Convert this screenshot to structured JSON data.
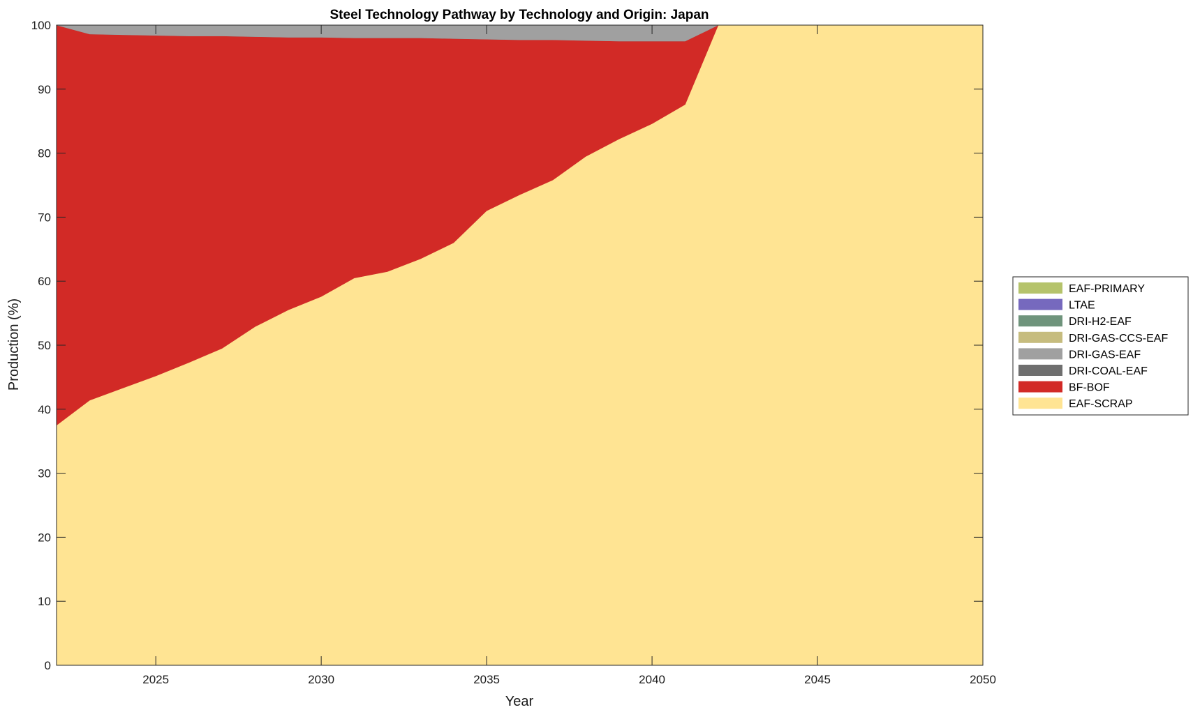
{
  "chart_data": {
    "type": "area",
    "stacked": true,
    "title": "Steel Technology Pathway by Technology and Origin: Japan",
    "xlabel": "Year",
    "ylabel": "Production (%)",
    "xlim": [
      2022,
      2050
    ],
    "ylim": [
      0,
      100
    ],
    "xticks": [
      2025,
      2030,
      2035,
      2040,
      2045,
      2050
    ],
    "yticks": [
      0,
      10,
      20,
      30,
      40,
      50,
      60,
      70,
      80,
      90,
      100
    ],
    "grid": false,
    "legend_position": "right",
    "x": [
      2022,
      2023,
      2024,
      2025,
      2026,
      2027,
      2028,
      2029,
      2030,
      2031,
      2032,
      2033,
      2034,
      2035,
      2036,
      2037,
      2038,
      2039,
      2040,
      2041,
      2042,
      2043,
      2044,
      2045,
      2046,
      2047,
      2048,
      2049,
      2050
    ],
    "series": [
      {
        "name": "EAF-SCRAP",
        "color": "#ffe493",
        "values": [
          37.5,
          41.4,
          43.3,
          45.2,
          47.3,
          49.5,
          52.9,
          55.5,
          57.6,
          60.5,
          61.5,
          63.5,
          66.0,
          71.0,
          73.5,
          75.8,
          79.5,
          82.2,
          84.6,
          87.6,
          100,
          100,
          100,
          100,
          100,
          100,
          100,
          100,
          100
        ]
      },
      {
        "name": "BF-BOF",
        "color": "#d22a26",
        "values": [
          62.5,
          57.2,
          55.2,
          53.2,
          51.0,
          48.8,
          45.3,
          42.6,
          40.5,
          37.5,
          36.5,
          34.5,
          31.9,
          26.8,
          24.2,
          21.9,
          18.1,
          15.3,
          12.9,
          9.9,
          0,
          0,
          0,
          0,
          0,
          0,
          0,
          0,
          0
        ]
      },
      {
        "name": "DRI-COAL-EAF",
        "color": "#6f6f6f",
        "values": [
          0,
          0,
          0,
          0,
          0,
          0,
          0,
          0,
          0,
          0,
          0,
          0,
          0,
          0,
          0,
          0,
          0,
          0,
          0,
          0,
          0,
          0,
          0,
          0,
          0,
          0,
          0,
          0,
          0
        ]
      },
      {
        "name": "DRI-GAS-EAF",
        "color": "#a0a0a0",
        "values": [
          0,
          1.4,
          1.5,
          1.6,
          1.7,
          1.7,
          1.8,
          1.9,
          1.9,
          2.0,
          2.0,
          2.0,
          2.1,
          2.2,
          2.3,
          2.3,
          2.4,
          2.5,
          2.5,
          2.5,
          0,
          0,
          0,
          0,
          0,
          0,
          0,
          0,
          0
        ]
      },
      {
        "name": "DRI-GAS-CCS-EAF",
        "color": "#c6bc7e",
        "values": [
          0,
          0,
          0,
          0,
          0,
          0,
          0,
          0,
          0,
          0,
          0,
          0,
          0,
          0,
          0,
          0,
          0,
          0,
          0,
          0,
          0,
          0,
          0,
          0,
          0,
          0,
          0,
          0,
          0
        ]
      },
      {
        "name": "DRI-H2-EAF",
        "color": "#6f947c",
        "values": [
          0,
          0,
          0,
          0,
          0,
          0,
          0,
          0,
          0,
          0,
          0,
          0,
          0,
          0,
          0,
          0,
          0,
          0,
          0,
          0,
          0,
          0,
          0,
          0,
          0,
          0,
          0,
          0,
          0
        ]
      },
      {
        "name": "LTAE",
        "color": "#7669be",
        "values": [
          0,
          0,
          0,
          0,
          0,
          0,
          0,
          0,
          0,
          0,
          0,
          0,
          0,
          0,
          0,
          0,
          0,
          0,
          0,
          0,
          0,
          0,
          0,
          0,
          0,
          0,
          0,
          0,
          0
        ]
      },
      {
        "name": "EAF-PRIMARY",
        "color": "#b5c36b",
        "values": [
          0,
          0,
          0,
          0,
          0,
          0,
          0,
          0,
          0,
          0,
          0,
          0,
          0,
          0,
          0,
          0,
          0,
          0,
          0,
          0,
          0,
          0,
          0,
          0,
          0,
          0,
          0,
          0,
          0
        ]
      }
    ],
    "legend_order": [
      "EAF-PRIMARY",
      "LTAE",
      "DRI-H2-EAF",
      "DRI-GAS-CCS-EAF",
      "DRI-GAS-EAF",
      "DRI-COAL-EAF",
      "BF-BOF",
      "EAF-SCRAP"
    ]
  }
}
